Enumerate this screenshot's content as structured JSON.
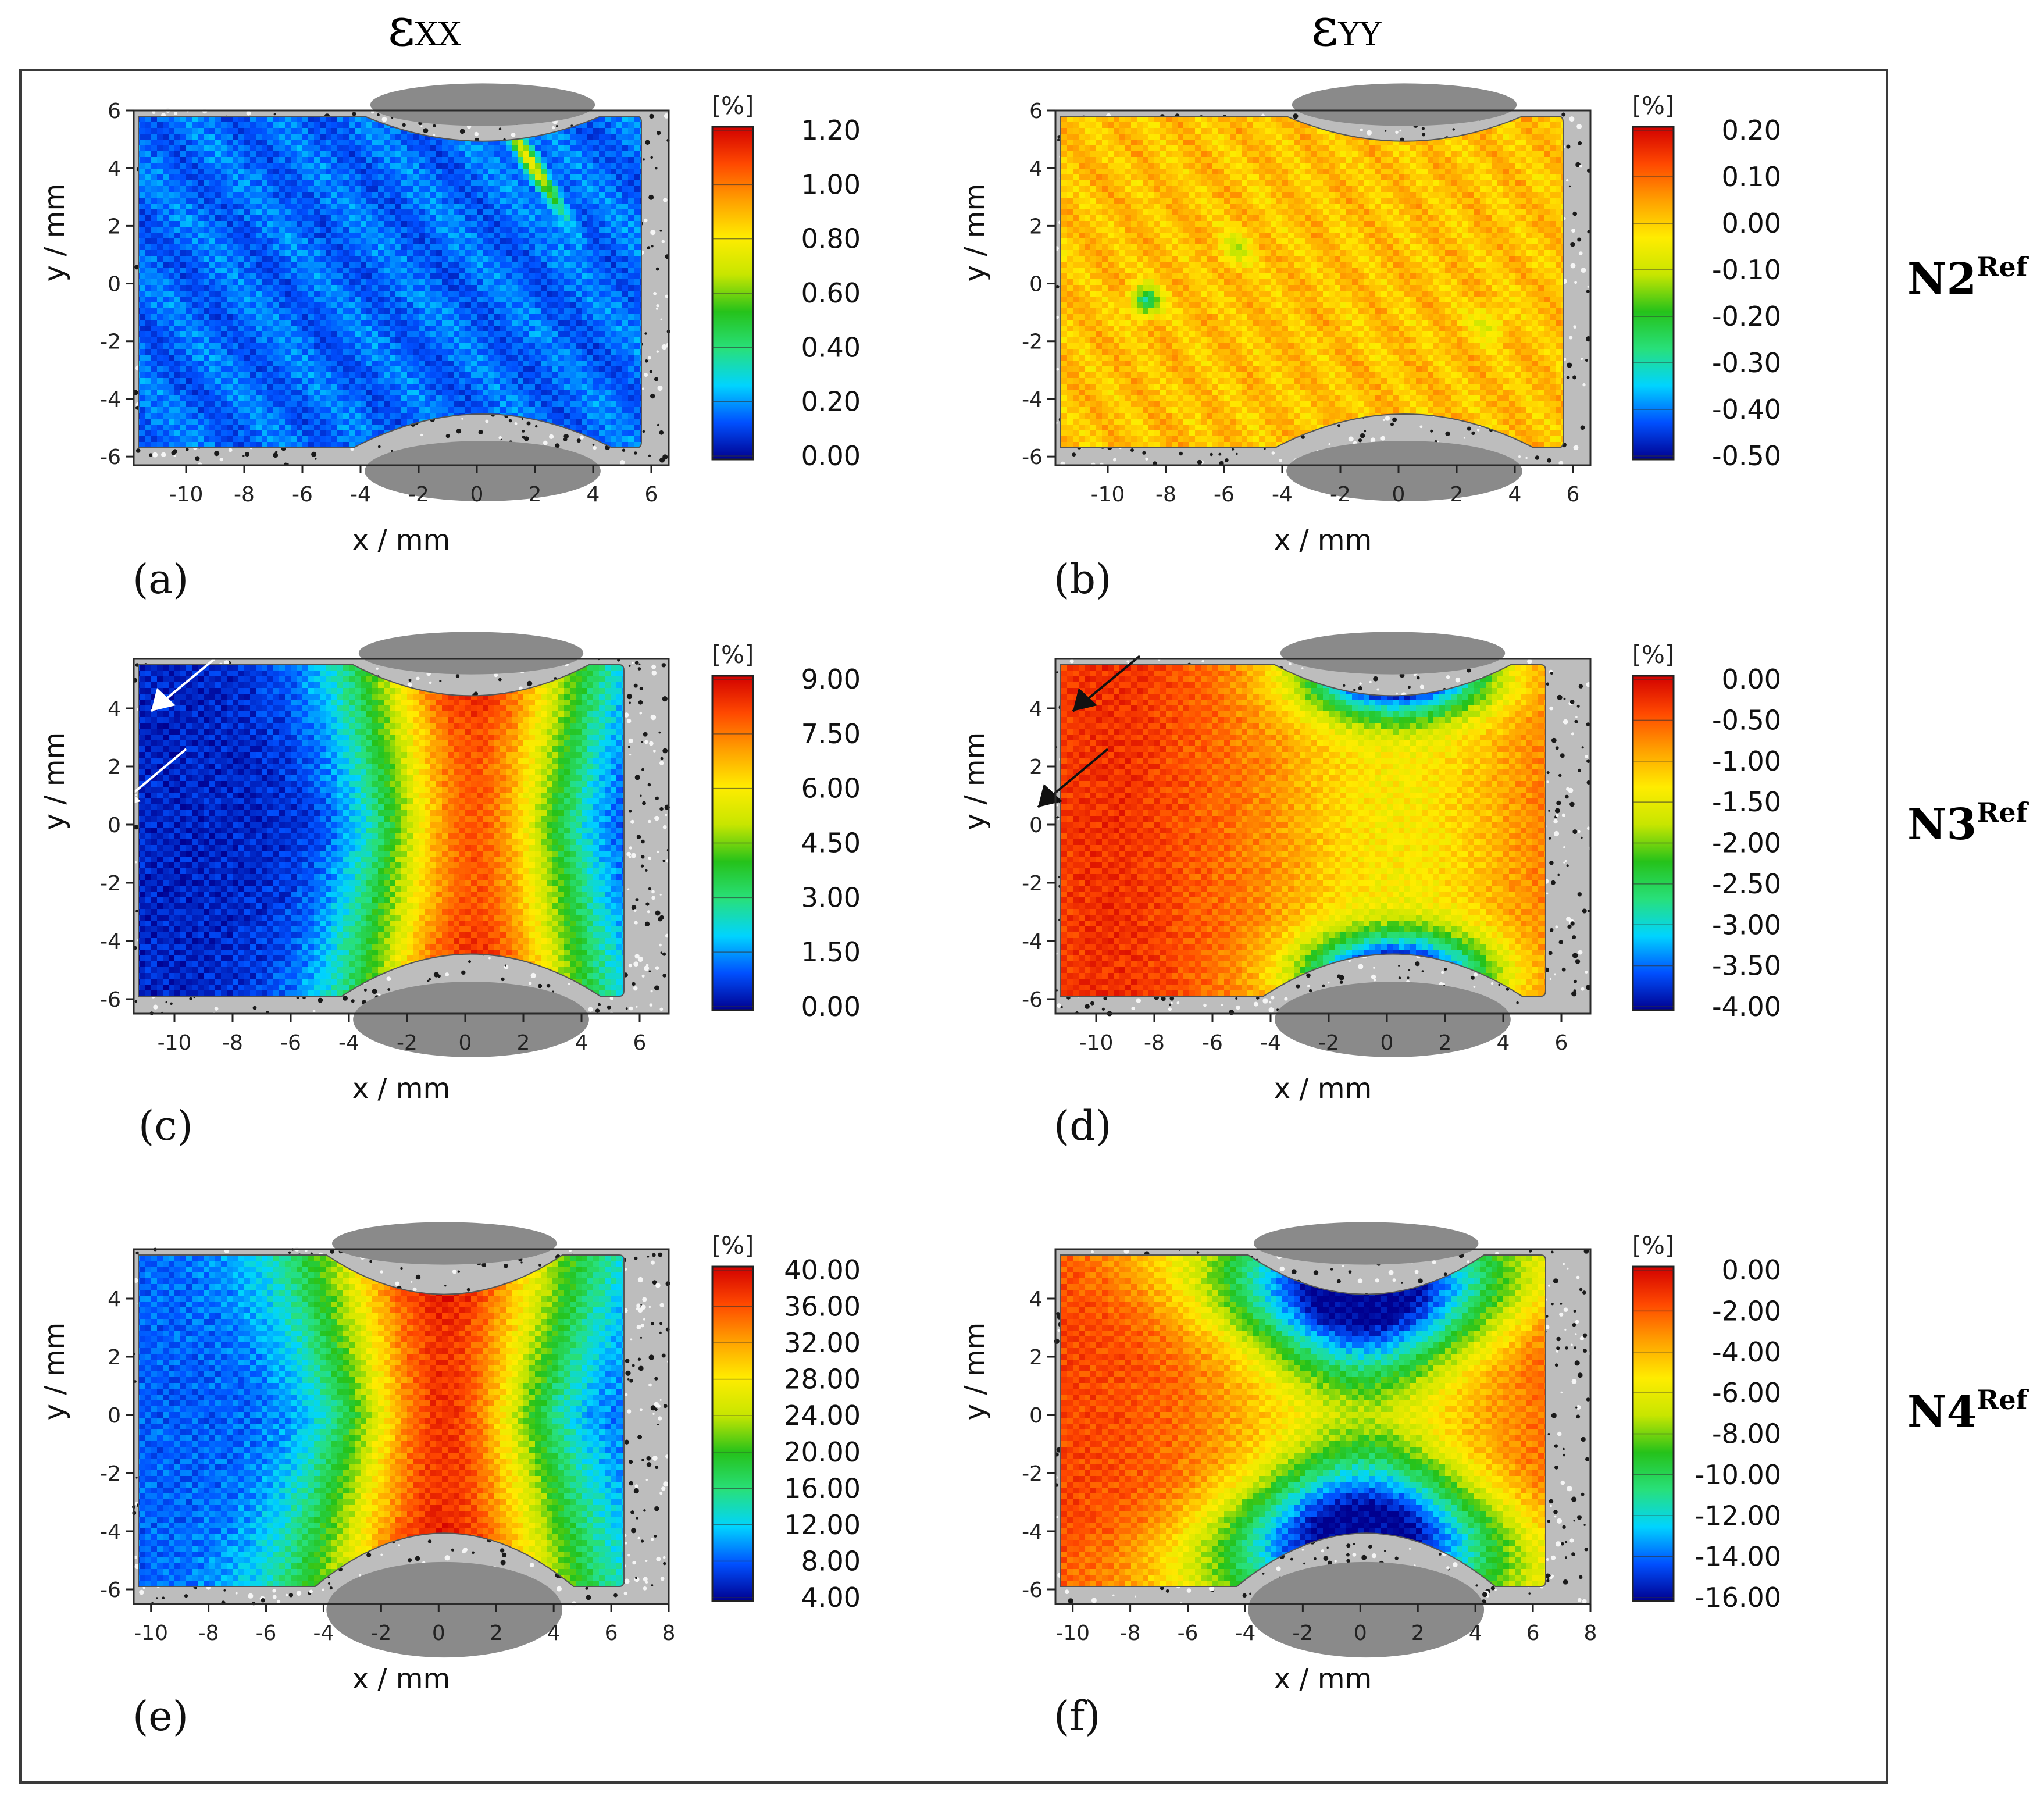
{
  "figure": {
    "columns": [
      {
        "symbol": "ε",
        "subscript": "XX"
      },
      {
        "symbol": "ε",
        "subscript": "YY"
      }
    ],
    "rows": [
      {
        "label": "N2",
        "superscript": "Ref"
      },
      {
        "label": "N3",
        "superscript": "Ref"
      },
      {
        "label": "N4",
        "superscript": "Ref"
      }
    ],
    "axis": {
      "xlabel": "x / mm",
      "ylabel": "y / mm",
      "unit": "[%]"
    }
  },
  "chart_data": [
    {
      "type": "heatmap",
      "panel": "(a)",
      "field": "εXX",
      "specimen": "N2Ref",
      "xlim": [
        -11.8,
        6.6
      ],
      "ylim": [
        -6.3,
        6.0
      ],
      "xticks": [
        -10,
        -8,
        -6,
        -4,
        -2,
        0,
        2,
        4,
        6
      ],
      "yticks": [
        6,
        4,
        2,
        0,
        -2,
        -4,
        -6
      ],
      "colorbar": {
        "unit": "[%]",
        "labels": [
          "1.20",
          "1.00",
          "0.80",
          "0.60",
          "0.40",
          "0.20",
          "0.00"
        ]
      },
      "field_model": "a",
      "arrows": "none",
      "notch": "shallow"
    },
    {
      "type": "heatmap",
      "panel": "(b)",
      "field": "εYY",
      "specimen": "N2Ref",
      "xlim": [
        -11.8,
        6.6
      ],
      "ylim": [
        -6.3,
        6.0
      ],
      "xticks": [
        -10,
        -8,
        -6,
        -4,
        -2,
        0,
        2,
        4,
        6
      ],
      "yticks": [
        6,
        4,
        2,
        0,
        -2,
        -4,
        -6
      ],
      "colorbar": {
        "unit": "[%]",
        "labels": [
          "0.20",
          "0.10",
          "0.00",
          "-0.10",
          "-0.20",
          "-0.30",
          "-0.40",
          "-0.50"
        ]
      },
      "field_model": "b",
      "arrows": "none",
      "notch": "shallow"
    },
    {
      "type": "heatmap",
      "panel": "(c)",
      "field": "εXX",
      "specimen": "N3Ref",
      "xlim": [
        -11.4,
        7.0
      ],
      "ylim": [
        -6.5,
        5.7
      ],
      "xticks": [
        -10,
        -8,
        -6,
        -4,
        -2,
        0,
        2,
        4,
        6
      ],
      "yticks": [
        4,
        2,
        0,
        -2,
        -4,
        -6
      ],
      "colorbar": {
        "unit": "[%]",
        "labels": [
          "9.00",
          "7.50",
          "6.00",
          "4.50",
          "3.00",
          "1.50",
          "0.00"
        ]
      },
      "field_model": "c",
      "arrows": "white",
      "notch": "medium"
    },
    {
      "type": "heatmap",
      "panel": "(d)",
      "field": "εYY",
      "specimen": "N3Ref",
      "xlim": [
        -11.4,
        7.0
      ],
      "ylim": [
        -6.5,
        5.7
      ],
      "xticks": [
        -10,
        -8,
        -6,
        -4,
        -2,
        0,
        2,
        4,
        6
      ],
      "yticks": [
        4,
        2,
        0,
        -2,
        -4,
        -6
      ],
      "colorbar": {
        "unit": "[%]",
        "labels": [
          "0.00",
          "-0.50",
          "-1.00",
          "-1.50",
          "-2.00",
          "-2.50",
          "-3.00",
          "-3.50",
          "-4.00"
        ]
      },
      "field_model": "d",
      "arrows": "black",
      "notch": "medium"
    },
    {
      "type": "heatmap",
      "panel": "(e)",
      "field": "εXX",
      "specimen": "N4Ref",
      "xlim": [
        -10.6,
        8.0
      ],
      "ylim": [
        -6.5,
        5.7
      ],
      "xticks": [
        -10,
        -8,
        -6,
        -4,
        -2,
        0,
        2,
        4,
        6,
        8
      ],
      "yticks": [
        4,
        2,
        0,
        -2,
        -4,
        -6
      ],
      "colorbar": {
        "unit": "[%]",
        "labels": [
          "40.00",
          "36.00",
          "32.00",
          "28.00",
          "24.00",
          "20.00",
          "16.00",
          "12.00",
          "8.00",
          "4.00"
        ]
      },
      "field_model": "e",
      "arrows": "none",
      "notch": "deep"
    },
    {
      "type": "heatmap",
      "panel": "(f)",
      "field": "εYY",
      "specimen": "N4Ref",
      "xlim": [
        -10.6,
        8.0
      ],
      "ylim": [
        -6.5,
        5.7
      ],
      "xticks": [
        -10,
        -8,
        -6,
        -4,
        -2,
        0,
        2,
        4,
        6,
        8
      ],
      "yticks": [
        4,
        2,
        0,
        -2,
        -4,
        -6
      ],
      "colorbar": {
        "unit": "[%]",
        "labels": [
          "0.00",
          "-2.00",
          "-4.00",
          "-6.00",
          "-8.00",
          "-10.00",
          "-12.00",
          "-14.00",
          "-16.00"
        ]
      },
      "field_model": "f",
      "arrows": "none",
      "notch": "deep"
    }
  ],
  "colors": {
    "jet": [
      "#00008f",
      "#0050ff",
      "#00d4ff",
      "#28e07a",
      "#25c21a",
      "#c8e600",
      "#ffec00",
      "#ffa000",
      "#ff4800",
      "#d20000"
    ],
    "frame": "#2a2a2a",
    "speckle_bg": "#bdbdbd",
    "grip": "#8a8a8a"
  }
}
